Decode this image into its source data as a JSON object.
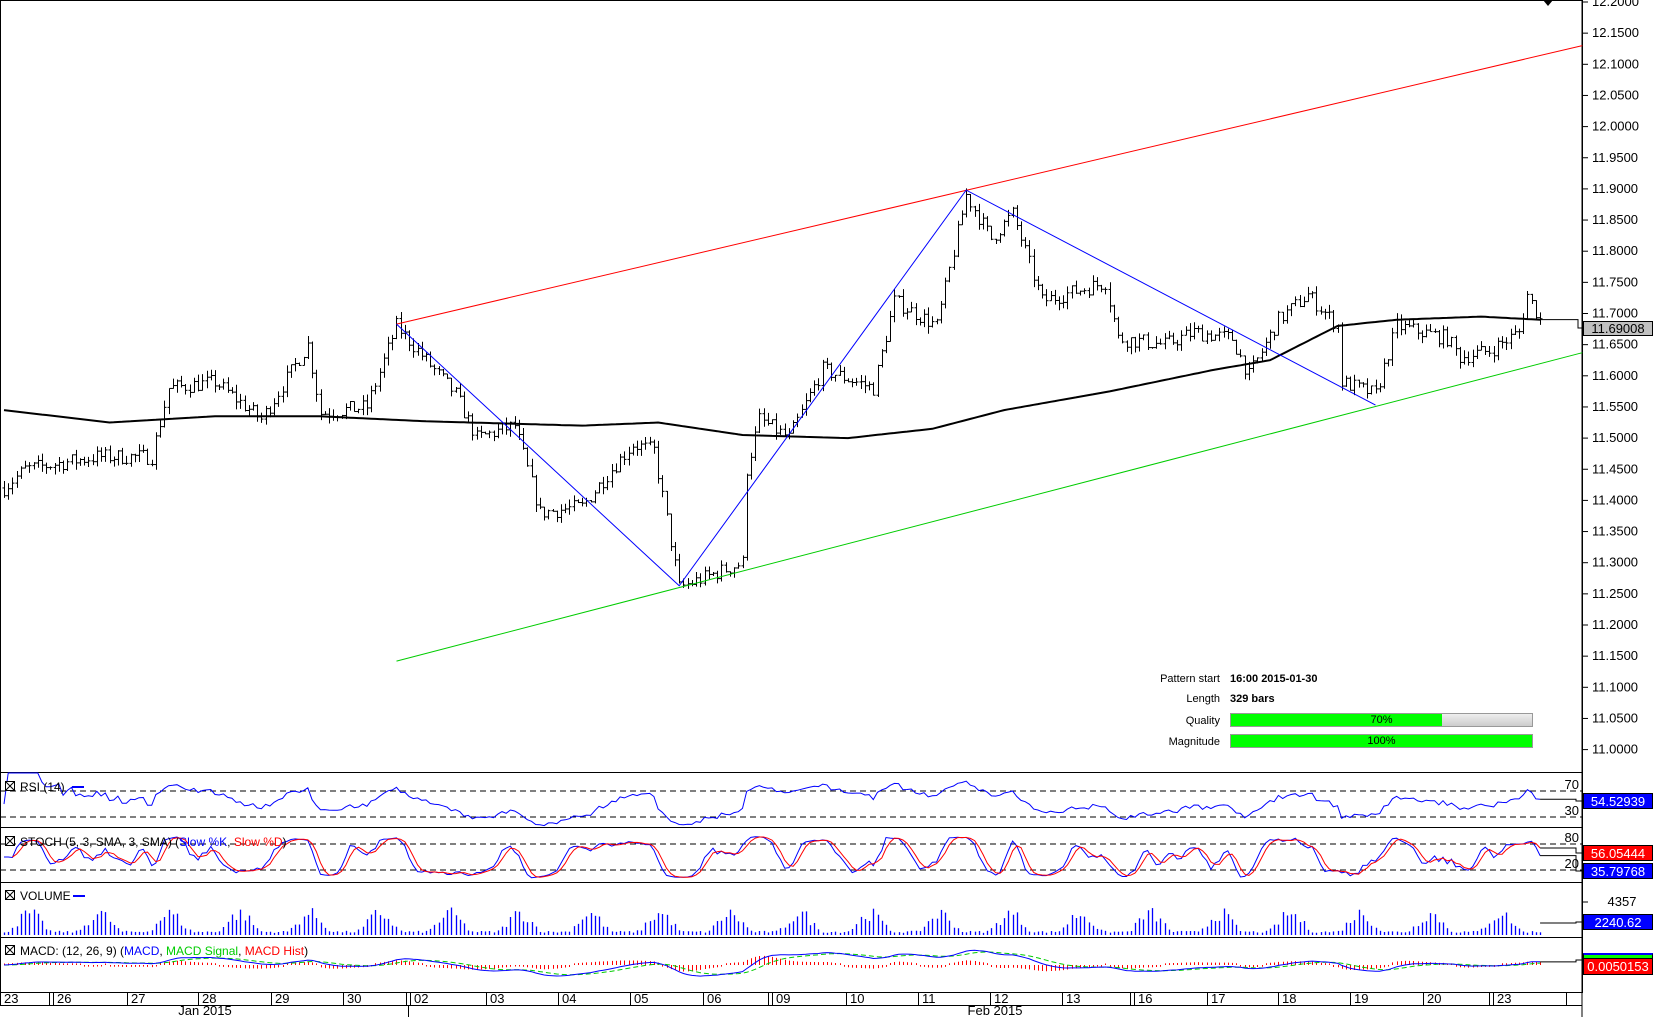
{
  "chart_data": {
    "type": "line",
    "title": "",
    "instrument_bars": 365,
    "price_keypoints": [
      [
        0,
        11.42
      ],
      [
        5,
        11.45
      ],
      [
        22,
        11.47
      ],
      [
        35,
        11.47
      ],
      [
        39,
        11.58
      ],
      [
        50,
        11.59
      ],
      [
        61,
        11.53
      ],
      [
        72,
        11.65
      ],
      [
        75,
        11.54
      ],
      [
        86,
        11.55
      ],
      [
        93,
        11.68
      ],
      [
        107,
        11.57
      ],
      [
        112,
        11.5
      ],
      [
        121,
        11.52
      ],
      [
        127,
        11.38
      ],
      [
        137,
        11.39
      ],
      [
        144,
        11.45
      ],
      [
        149,
        11.49
      ],
      [
        154,
        11.48
      ],
      [
        160,
        11.26
      ],
      [
        175,
        11.3
      ],
      [
        176,
        11.45
      ],
      [
        179,
        11.53
      ],
      [
        186,
        11.5
      ],
      [
        194,
        11.61
      ],
      [
        206,
        11.58
      ],
      [
        211,
        11.72
      ],
      [
        221,
        11.68
      ],
      [
        228,
        11.89
      ],
      [
        234,
        11.82
      ],
      [
        239,
        11.86
      ],
      [
        246,
        11.72
      ],
      [
        261,
        11.75
      ],
      [
        264,
        11.66
      ],
      [
        275,
        11.65
      ],
      [
        282,
        11.67
      ],
      [
        291,
        11.66
      ],
      [
        295,
        11.6
      ],
      [
        302,
        11.69
      ],
      [
        309,
        11.73
      ],
      [
        316,
        11.68
      ],
      [
        317,
        11.59
      ],
      [
        325,
        11.57
      ],
      [
        330,
        11.68
      ],
      [
        342,
        11.66
      ],
      [
        345,
        11.63
      ],
      [
        352,
        11.64
      ],
      [
        359,
        11.67
      ],
      [
        361,
        11.73
      ],
      [
        364,
        11.69
      ]
    ],
    "moving_average": [
      [
        0,
        11.545
      ],
      [
        25,
        11.525
      ],
      [
        50,
        11.535
      ],
      [
        75,
        11.535
      ],
      [
        100,
        11.527
      ],
      [
        137,
        11.52
      ],
      [
        155,
        11.525
      ],
      [
        175,
        11.505
      ],
      [
        200,
        11.5
      ],
      [
        220,
        11.515
      ],
      [
        237,
        11.545
      ],
      [
        262,
        11.575
      ],
      [
        287,
        11.61
      ],
      [
        300,
        11.625
      ],
      [
        316,
        11.68
      ],
      [
        330,
        11.69
      ],
      [
        350,
        11.695
      ],
      [
        364,
        11.69
      ]
    ],
    "resistance_line": [
      [
        93,
        11.683
      ],
      [
        374,
        12.13
      ]
    ],
    "support_line": [
      [
        93,
        11.142
      ],
      [
        374,
        11.637
      ]
    ],
    "zigzag": [
      [
        93,
        11.683
      ],
      [
        160,
        11.263
      ],
      [
        228,
        11.898
      ],
      [
        325,
        11.553
      ]
    ],
    "y_ticks": [
      "12.2000",
      "12.1500",
      "12.1000",
      "12.0500",
      "12.0000",
      "11.9500",
      "11.9000",
      "11.8500",
      "11.8000",
      "11.7500",
      "11.7000",
      "11.6500",
      "11.6000",
      "11.5500",
      "11.5000",
      "11.4500",
      "11.4000",
      "11.3500",
      "11.3000",
      "11.2500",
      "11.2000",
      "11.1500",
      "11.1000",
      "11.0500",
      "11.0000"
    ],
    "ylim": [
      11.0,
      12.2
    ],
    "x_ticks": [
      "23",
      "26",
      "27",
      "28",
      "29",
      "30",
      "02",
      "03",
      "04",
      "05",
      "06",
      "09",
      "10",
      "11",
      "12",
      "13",
      "16",
      "17",
      "18",
      "19",
      "20",
      "23"
    ],
    "months": [
      "Jan 2015",
      "Feb 2015"
    ],
    "current_price": "11.69008",
    "colors": {
      "resistance": "#ff0000",
      "support": "#00cc00",
      "zigzag": "#0000ff",
      "ma": "#000000"
    }
  },
  "pattern": {
    "start_label": "Pattern start",
    "start_value": "16:00 2015-01-30",
    "length_label": "Length",
    "length_value": "329 bars",
    "quality_label": "Quality",
    "quality_value": "70%",
    "quality": 70,
    "magnitude_label": "Magnitude",
    "magnitude_value": "100%",
    "magnitude": 100
  },
  "indicators": {
    "rsi": {
      "label": "RSI (14)",
      "level_high": "70",
      "level_low": "30",
      "value": "54.52939"
    },
    "stoch": {
      "label": "STOCH (5, 3, SMA, 3, SMA) (",
      "k_label": "Slow %K",
      "sep": ", ",
      "d_label": "Slow %D",
      "close": ")",
      "level_high": "80",
      "level_low": "20",
      "d_value": "56.05444",
      "k_value": "35.79768"
    },
    "volume": {
      "label": "VOLUME",
      "max_tick": "4357",
      "value": "2240.62"
    },
    "macd": {
      "label": "MACD: (12, 26, 9) (",
      "macd_label": "MACD",
      "sep": ", ",
      "signal_label": "MACD Signal",
      "hist_label": "MACD Hist",
      "close": ")",
      "value": "0.0050153"
    }
  }
}
